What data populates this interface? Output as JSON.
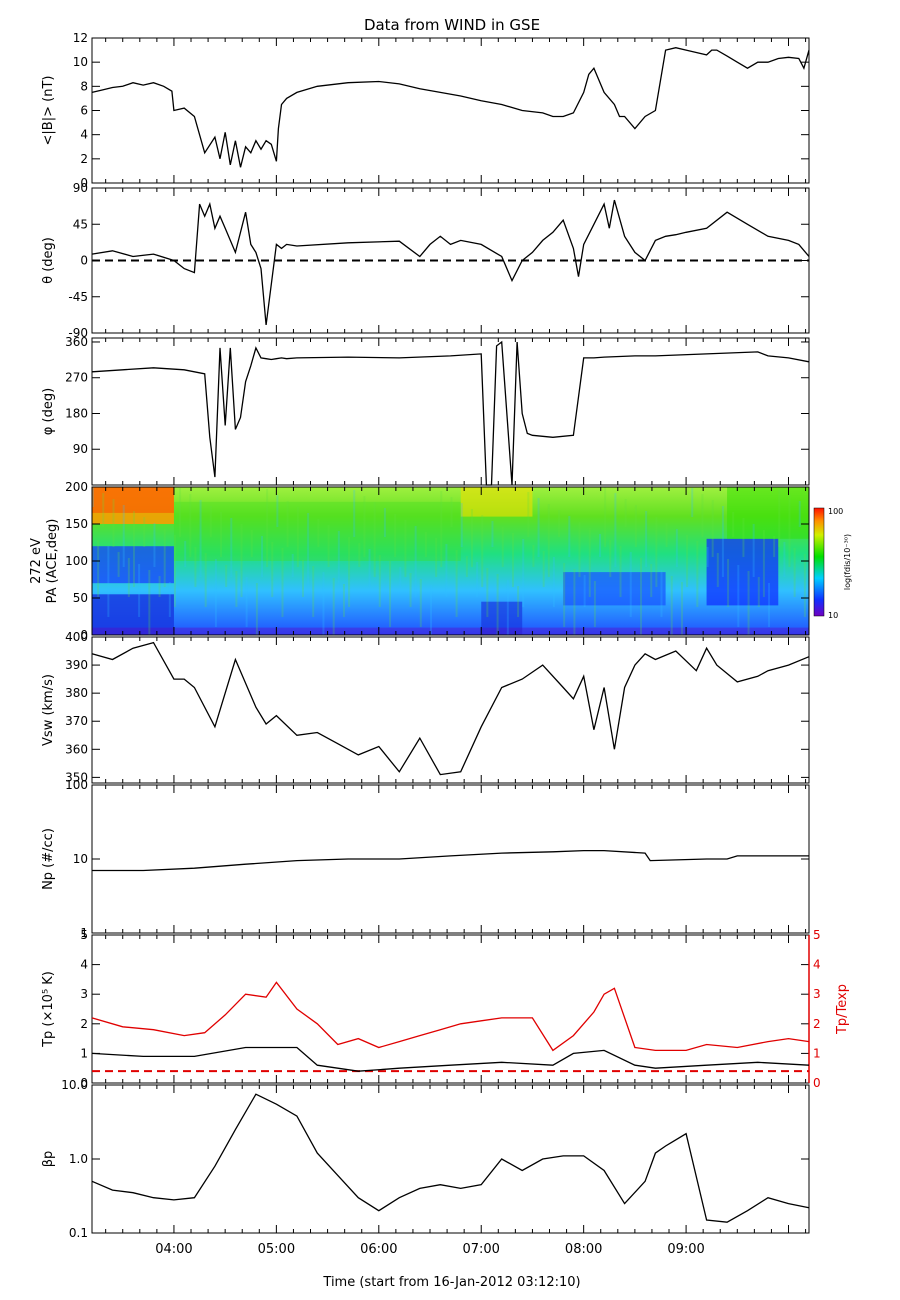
{
  "title": "Data from WIND in GSE",
  "xlabel": "Time (start from 16-Jan-2012 03:12:10)",
  "x_tick_labels": [
    "04:00",
    "05:00",
    "06:00",
    "07:00",
    "08:00",
    "09:00"
  ],
  "colors": {
    "black": "#000000",
    "red": "#e00000"
  },
  "chart_data": [
    {
      "id": "B",
      "type": "line",
      "ylabel": "<|B|> (nT)",
      "ylim": [
        0,
        12
      ],
      "yticks": [
        0,
        2,
        4,
        6,
        8,
        10,
        12
      ],
      "ytick_labels": [
        "0",
        "2",
        "4",
        "6",
        "8",
        "10",
        "12"
      ],
      "series": [
        {
          "color": "#000000",
          "x": [
            0,
            0.1,
            0.2,
            0.3,
            0.4,
            0.5,
            0.6,
            0.7,
            0.78,
            0.8,
            0.9,
            1.0,
            1.1,
            1.2,
            1.25,
            1.3,
            1.35,
            1.4,
            1.45,
            1.5,
            1.55,
            1.6,
            1.65,
            1.7,
            1.75,
            1.8,
            1.82,
            1.85,
            1.9,
            2.0,
            2.2,
            2.5,
            2.8,
            3.0,
            3.2,
            3.4,
            3.6,
            3.8,
            4.0,
            4.2,
            4.4,
            4.5,
            4.6,
            4.7,
            4.8,
            4.85,
            4.9,
            5.0,
            5.1,
            5.15,
            5.2,
            5.3,
            5.4,
            5.5,
            5.6,
            5.7,
            5.8,
            5.9,
            6.0,
            6.05,
            6.1,
            6.2,
            6.3,
            6.4,
            6.5,
            6.6,
            6.7,
            6.8,
            6.9,
            6.95,
            7.0
          ],
          "y": [
            7.5,
            7.7,
            7.9,
            8.0,
            8.3,
            8.1,
            8.3,
            8.0,
            7.6,
            6.0,
            6.2,
            5.5,
            2.5,
            3.8,
            2.0,
            4.2,
            1.5,
            3.5,
            1.3,
            3.0,
            2.5,
            3.5,
            2.8,
            3.5,
            3.2,
            1.8,
            4.5,
            6.5,
            7.0,
            7.5,
            8.0,
            8.3,
            8.4,
            8.2,
            7.8,
            7.5,
            7.2,
            6.8,
            6.5,
            6.0,
            5.8,
            5.5,
            5.5,
            5.8,
            7.5,
            9.0,
            9.5,
            7.5,
            6.5,
            5.5,
            5.5,
            4.5,
            5.5,
            6.0,
            11.0,
            11.2,
            11.0,
            10.8,
            10.6,
            11.0,
            11.0,
            10.5,
            10.0,
            9.5,
            10.0,
            10.0,
            10.3,
            10.4,
            10.3,
            9.5,
            11.0
          ]
        }
      ]
    },
    {
      "id": "theta",
      "type": "line",
      "ylabel": "θ (deg)",
      "ylim": [
        -90,
        90
      ],
      "yticks": [
        -90,
        -45,
        0,
        45,
        90
      ],
      "ytick_labels": [
        "-90",
        "-45",
        "0",
        "45",
        "90"
      ],
      "reference_line": {
        "y": 0,
        "style": "dashed",
        "color": "#000000"
      },
      "series": [
        {
          "color": "#000000",
          "x": [
            0,
            0.2,
            0.4,
            0.6,
            0.8,
            0.9,
            1.0,
            1.05,
            1.1,
            1.15,
            1.2,
            1.25,
            1.3,
            1.4,
            1.5,
            1.55,
            1.6,
            1.65,
            1.7,
            1.8,
            1.85,
            1.9,
            2.0,
            2.5,
            3.0,
            3.2,
            3.3,
            3.4,
            3.5,
            3.6,
            3.8,
            4.0,
            4.1,
            4.2,
            4.3,
            4.4,
            4.5,
            4.6,
            4.7,
            4.75,
            4.8,
            4.9,
            5.0,
            5.05,
            5.1,
            5.2,
            5.3,
            5.4,
            5.5,
            5.6,
            5.7,
            5.8,
            6.0,
            6.2,
            6.4,
            6.6,
            6.8,
            6.9,
            7.0
          ],
          "y": [
            8,
            12,
            5,
            8,
            0,
            -10,
            -15,
            70,
            55,
            70,
            40,
            55,
            40,
            10,
            60,
            20,
            10,
            -10,
            -80,
            20,
            15,
            20,
            18,
            22,
            24,
            5,
            20,
            30,
            20,
            25,
            20,
            5,
            -25,
            0,
            10,
            25,
            35,
            50,
            15,
            -20,
            20,
            45,
            70,
            40,
            75,
            30,
            10,
            0,
            25,
            30,
            32,
            35,
            40,
            60,
            45,
            30,
            25,
            20,
            5
          ]
        }
      ]
    },
    {
      "id": "phi",
      "type": "line",
      "ylabel": "φ (deg)",
      "ylim": [
        0,
        370
      ],
      "yticks": [
        90,
        180,
        270,
        360
      ],
      "ytick_labels": [
        "90",
        "180",
        "270",
        "360"
      ],
      "series": [
        {
          "color": "#000000",
          "x": [
            0,
            0.3,
            0.6,
            0.9,
            1.1,
            1.15,
            1.2,
            1.25,
            1.3,
            1.35,
            1.4,
            1.45,
            1.5,
            1.55,
            1.6,
            1.65,
            1.7,
            1.75,
            1.8,
            1.85,
            1.9,
            2.0,
            2.5,
            3.0,
            3.5,
            3.8,
            3.85,
            3.9,
            3.95,
            4.0,
            4.1,
            4.15,
            4.2,
            4.25,
            4.3,
            4.5,
            4.7,
            4.8,
            4.9,
            5.0,
            5.3,
            5.5,
            6.0,
            6.5,
            6.6,
            6.8,
            7.0
          ],
          "y": [
            285,
            290,
            295,
            290,
            280,
            120,
            20,
            345,
            150,
            345,
            140,
            170,
            260,
            300,
            345,
            320,
            318,
            316,
            318,
            320,
            318,
            320,
            322,
            320,
            325,
            330,
            0,
            0,
            350,
            360,
            0,
            360,
            180,
            130,
            125,
            120,
            125,
            320,
            320,
            322,
            325,
            325,
            330,
            335,
            325,
            320,
            310
          ]
        }
      ]
    },
    {
      "id": "PA",
      "type": "heatmap",
      "ylabel_lines": [
        "272 eV",
        "PA (ACE,deg)"
      ],
      "ylim": [
        0,
        200
      ],
      "yticks": [
        0,
        50,
        100,
        150,
        200
      ],
      "ytick_labels": [
        "0",
        "50",
        "100",
        "150",
        "200"
      ],
      "colorbar": {
        "min_label": "10",
        "max_label": "100",
        "label": "log(fdis/10⁻³⁰)"
      }
    },
    {
      "id": "V",
      "type": "line",
      "ylabel": "Vsw (km/s)",
      "ylim": [
        348,
        400
      ],
      "yticks": [
        350,
        360,
        370,
        380,
        390,
        400
      ],
      "ytick_labels": [
        "350",
        "360",
        "370",
        "380",
        "390",
        "400"
      ],
      "series": [
        {
          "color": "#000000",
          "x": [
            0,
            0.2,
            0.4,
            0.6,
            0.8,
            0.9,
            1.0,
            1.2,
            1.4,
            1.6,
            1.7,
            1.8,
            2.0,
            2.2,
            2.4,
            2.6,
            2.8,
            3.0,
            3.2,
            3.4,
            3.6,
            3.8,
            4.0,
            4.2,
            4.4,
            4.6,
            4.7,
            4.8,
            4.9,
            5.0,
            5.1,
            5.2,
            5.3,
            5.4,
            5.5,
            5.7,
            5.9,
            6.0,
            6.1,
            6.3,
            6.5,
            6.6,
            6.8,
            7.0
          ],
          "y": [
            394,
            392,
            396,
            398,
            385,
            385,
            382,
            368,
            392,
            375,
            369,
            372,
            365,
            366,
            362,
            358,
            361,
            352,
            364,
            351,
            352,
            368,
            382,
            385,
            390,
            382,
            378,
            386,
            367,
            382,
            360,
            382,
            390,
            394,
            392,
            395,
            388,
            396,
            390,
            384,
            386,
            388,
            390,
            393
          ]
        }
      ]
    },
    {
      "id": "Np",
      "type": "line",
      "ylabel": "Np (#/cc)",
      "ylim": [
        1,
        100
      ],
      "scale": "log",
      "yticks": [
        1,
        10,
        100
      ],
      "ytick_labels": [
        "1",
        "10",
        "100"
      ],
      "series": [
        {
          "color": "#000000",
          "x": [
            0,
            0.5,
            1.0,
            1.5,
            2.0,
            2.5,
            3.0,
            3.5,
            4.0,
            4.5,
            4.8,
            5.0,
            5.4,
            5.45,
            6.0,
            6.2,
            6.3,
            6.5,
            7.0
          ],
          "y": [
            7,
            7,
            7.5,
            8.5,
            9.5,
            10,
            10,
            11,
            12,
            12.5,
            13,
            13,
            12,
            9.5,
            10,
            10,
            11,
            11,
            11
          ]
        }
      ]
    },
    {
      "id": "Tp",
      "type": "line",
      "ylabel": "Tp (×10⁵ K)",
      "ylabel_right": "Tp/Texp",
      "ylim": [
        0,
        5
      ],
      "yticks": [
        0,
        1,
        2,
        3,
        4,
        5
      ],
      "ytick_labels": [
        "0",
        "1",
        "2",
        "3",
        "4",
        "5"
      ],
      "reference_line": {
        "y": 0.4,
        "style": "dashed",
        "color": "#e00000"
      },
      "series": [
        {
          "color": "#000000",
          "x": [
            0,
            0.5,
            1.0,
            1.5,
            2.0,
            2.2,
            2.4,
            2.6,
            3.0,
            3.5,
            4.0,
            4.5,
            4.7,
            5.0,
            5.3,
            5.5,
            6.0,
            6.5,
            7.0
          ],
          "y": [
            1.0,
            0.9,
            0.9,
            1.2,
            1.2,
            0.6,
            0.5,
            0.4,
            0.5,
            0.6,
            0.7,
            0.6,
            1.0,
            1.1,
            0.6,
            0.5,
            0.6,
            0.7,
            0.6
          ]
        },
        {
          "color": "#e00000",
          "x": [
            0,
            0.3,
            0.6,
            0.9,
            1.1,
            1.3,
            1.5,
            1.7,
            1.8,
            2.0,
            2.2,
            2.4,
            2.6,
            2.8,
            3.0,
            3.2,
            3.4,
            3.6,
            3.8,
            4.0,
            4.3,
            4.5,
            4.7,
            4.9,
            5.0,
            5.1,
            5.3,
            5.5,
            5.8,
            6.0,
            6.3,
            6.6,
            6.8,
            7.0
          ],
          "y": [
            2.2,
            1.9,
            1.8,
            1.6,
            1.7,
            2.3,
            3.0,
            2.9,
            3.4,
            2.5,
            2.0,
            1.3,
            1.5,
            1.2,
            1.4,
            1.6,
            1.8,
            2.0,
            2.1,
            2.2,
            2.2,
            1.1,
            1.6,
            2.4,
            3.0,
            3.2,
            1.2,
            1.1,
            1.1,
            1.3,
            1.2,
            1.4,
            1.5,
            1.4
          ]
        }
      ]
    },
    {
      "id": "beta",
      "type": "line",
      "ylabel": "βp",
      "ylim": [
        0.1,
        10
      ],
      "scale": "log",
      "yticks": [
        0.1,
        1.0,
        10.0
      ],
      "ytick_labels": [
        "0.1",
        "1.0",
        "10.0"
      ],
      "series": [
        {
          "color": "#000000",
          "x": [
            0,
            0.2,
            0.4,
            0.6,
            0.8,
            1.0,
            1.2,
            1.4,
            1.6,
            1.8,
            2.0,
            2.2,
            2.4,
            2.6,
            2.8,
            3.0,
            3.2,
            3.4,
            3.6,
            3.8,
            4.0,
            4.2,
            4.4,
            4.6,
            4.8,
            5.0,
            5.2,
            5.4,
            5.5,
            5.6,
            5.8,
            6.0,
            6.2,
            6.4,
            6.6,
            6.8,
            7.0
          ],
          "y": [
            0.5,
            0.38,
            0.35,
            0.3,
            0.28,
            0.3,
            0.8,
            2.5,
            7.5,
            5.5,
            3.8,
            1.2,
            0.6,
            0.3,
            0.2,
            0.3,
            0.4,
            0.45,
            0.4,
            0.45,
            1.0,
            0.7,
            1.0,
            1.1,
            1.1,
            0.7,
            0.25,
            0.5,
            1.2,
            1.5,
            2.2,
            0.15,
            0.14,
            0.2,
            0.3,
            0.25,
            0.22
          ]
        }
      ]
    }
  ]
}
